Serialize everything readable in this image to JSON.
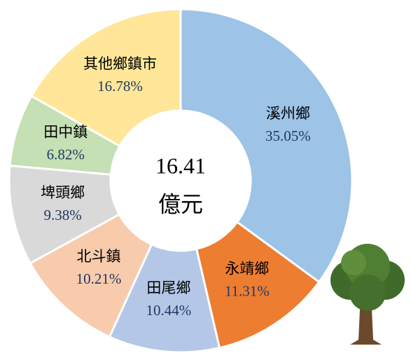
{
  "chart_data": {
    "type": "donut",
    "categories": [
      "溪州鄉",
      "永靖鄉",
      "田尾鄉",
      "北斗鎮",
      "埤頭鄉",
      "田中鎮",
      "其他鄉鎮市"
    ],
    "values": [
      35.05,
      11.31,
      10.44,
      10.21,
      9.38,
      6.82,
      16.78
    ],
    "value_labels": [
      "35.05%",
      "11.31%",
      "10.44%",
      "10.21%",
      "9.38%",
      "6.82%",
      "16.78%"
    ],
    "colors": [
      "#9dc3e6",
      "#ed7d31",
      "#b4c7e7",
      "#f8cbad",
      "#d9d9d9",
      "#c5e0b4",
      "#ffe699"
    ],
    "center_value": "16.41",
    "center_unit": "億元"
  }
}
